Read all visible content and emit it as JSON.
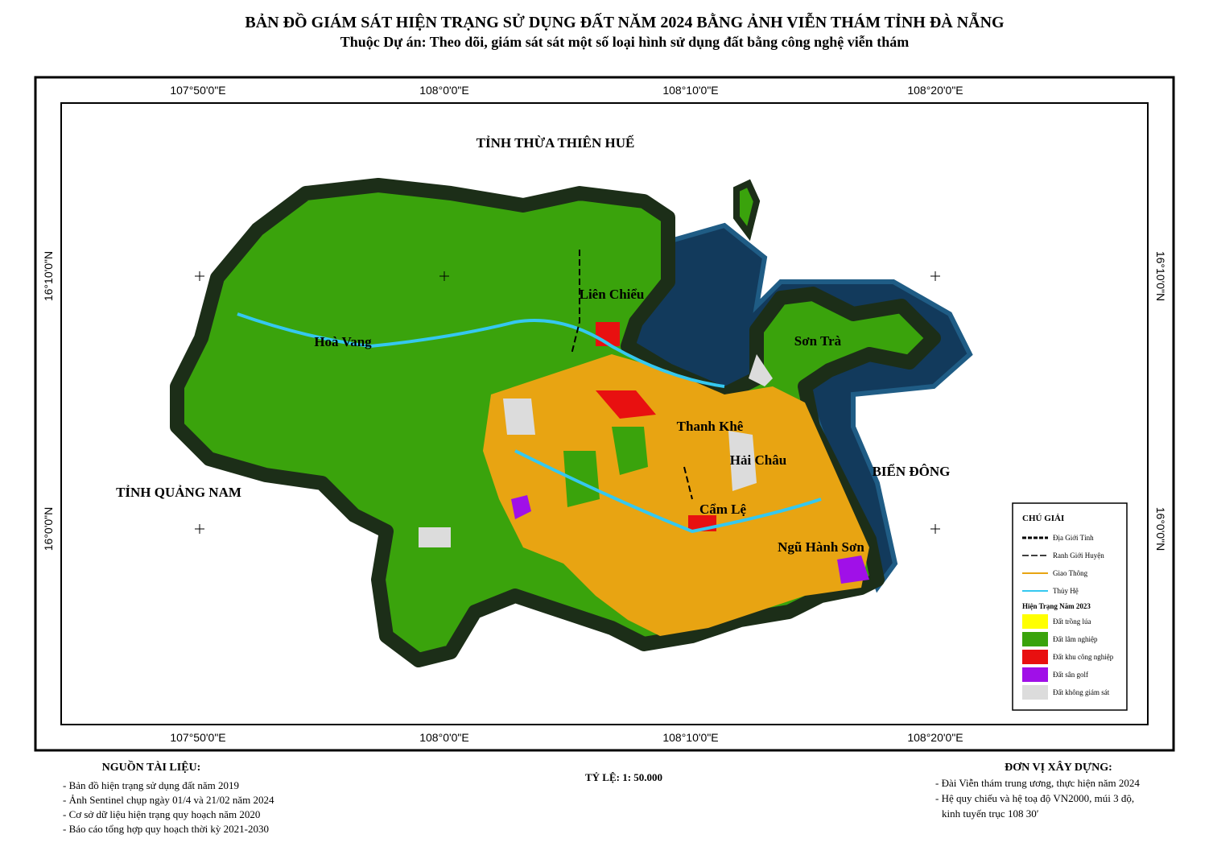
{
  "header": {
    "title": "BẢN ĐỒ GIÁM SÁT HIỆN TRẠNG SỬ DỤNG ĐẤT NĂM 2024 BẰNG ẢNH VIỄN THÁM TỈNH ĐÀ NẴNG",
    "subtitle": "Thuộc Dự án: Theo dõi, giám sát sát một số loại hình sử dụng đất bằng công nghệ viễn thám"
  },
  "graticule": {
    "longitudes": [
      "107°50'0\"E",
      "108°0'0\"E",
      "108°10'0\"E",
      "108°20'0\"E"
    ],
    "latitudes": [
      "16°10'0\"N",
      "16°0'0\"N"
    ]
  },
  "places": [
    "TỈNH THỪA THIÊN HUẾ",
    "TỈNH QUẢNG NAM",
    "BIỂN ĐÔNG",
    "Liên Chiểu",
    "Hoà Vang",
    "Sơn Trà",
    "Thanh Khê",
    "Hải Châu",
    "Cẩm Lệ",
    "Ngũ Hành Sơn"
  ],
  "legend": {
    "title": "CHÚ GIẢI",
    "lines": [
      "Địa Giới Tỉnh",
      "Ranh Giới Huyện",
      "Giao Thông",
      "Thủy Hệ"
    ],
    "section": "Hiện Trạng Năm 2023",
    "classes": [
      "Đất trồng lúa",
      "Đất lâm nghiệp",
      "Đất khu công nghiệp",
      "Đất sân golf",
      "Đất không giám sát"
    ]
  },
  "scale": "TỶ LỆ: 1: 50.000",
  "sources": {
    "title": "NGUỒN TÀI LIỆU:",
    "items": [
      "- Bản đồ hiện trạng sử dụng đất năm 2019",
      "- Ảnh Sentinel chụp ngày 01/4 và 21/02 năm 2024",
      "- Cơ sở dữ liệu hiện trạng quy hoạch năm 2020",
      "- Báo cáo tổng hợp quy hoạch thời kỳ 2021-2030"
    ]
  },
  "builder": {
    "title": "ĐƠN VỊ XÂY DỰNG:",
    "items": [
      "- Đài Viễn thám trung ương, thực hiện năm 2024",
      "- Hệ quy chiếu và hệ toạ độ VN2000, múi 3 độ,",
      "kinh tuyến trục 108 30′"
    ]
  }
}
